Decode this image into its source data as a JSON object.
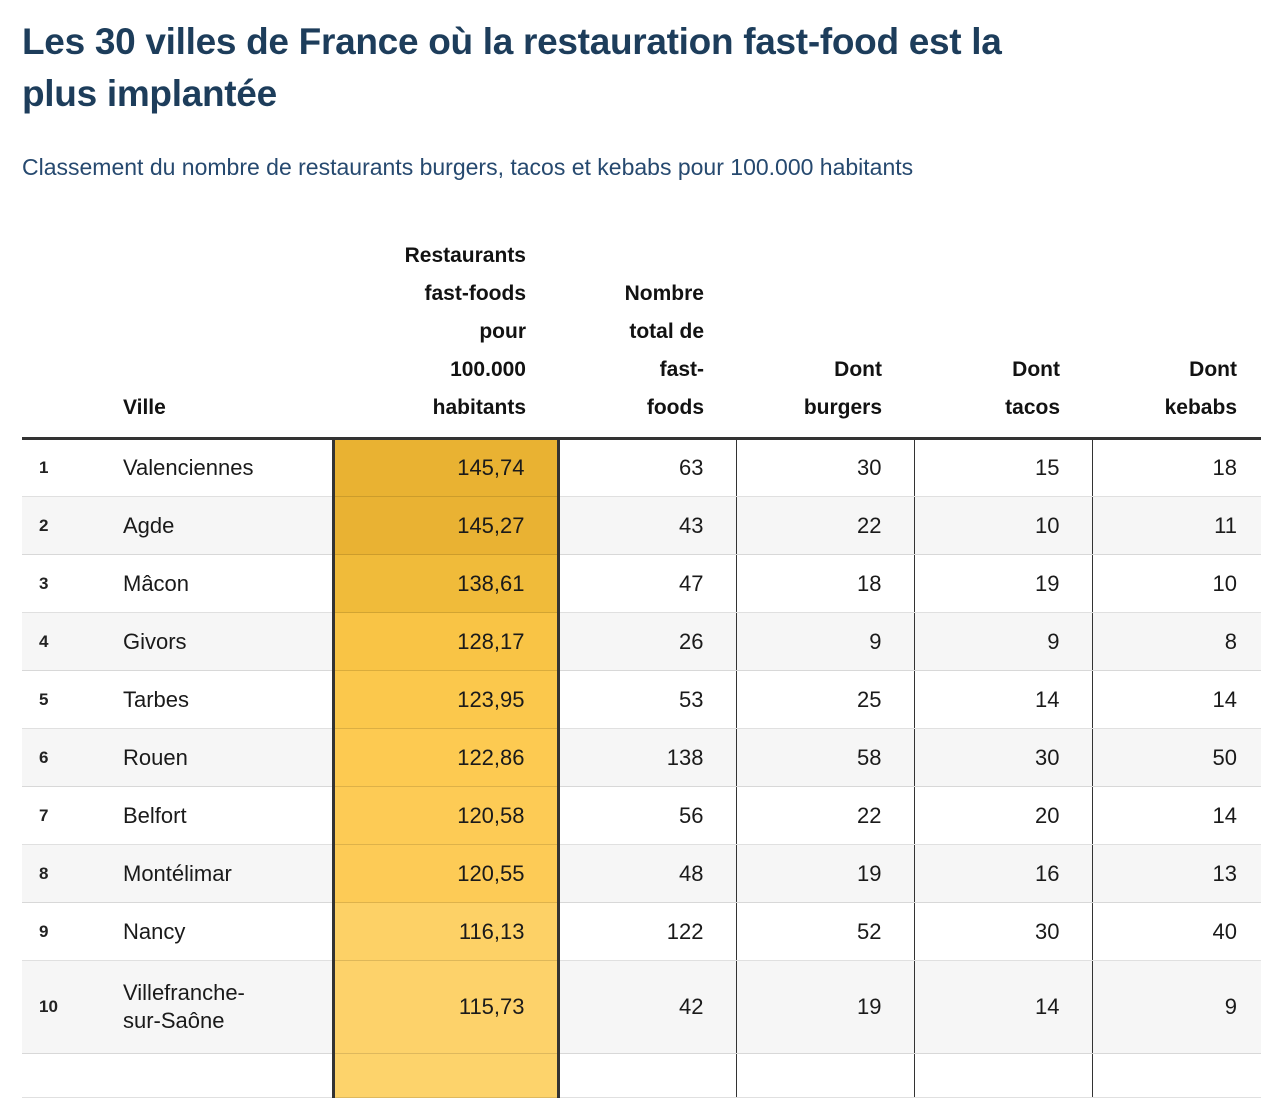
{
  "header": {
    "title_lines": [
      "Les 30 villes de France où la restauration fast-food est la",
      "plus implantée"
    ],
    "subtitle": "Classement du nombre de restaurants burgers, tacos et kebabs pour 100.000 habitants"
  },
  "colors": {
    "title": "#1d3d5b",
    "subtitle": "#26496f",
    "border_dark": "#333333",
    "zebra_row": "#f6f6f6",
    "heat_scale_dark": "#e9b232",
    "heat_scale_light": "#fdd36b"
  },
  "table": {
    "columns": {
      "rank": "",
      "ville": "Ville",
      "rate_lines": [
        "Restaurants",
        "fast-foods",
        "pour",
        "100.000",
        "habitants"
      ],
      "total_lines": [
        "Nombre",
        "total de",
        "fast-",
        "foods"
      ],
      "burgers_lines": [
        "Dont",
        "burgers"
      ],
      "tacos_lines": [
        "Dont",
        "tacos"
      ],
      "kebabs_lines": [
        "Dont",
        "kebabs"
      ]
    },
    "rows": [
      {
        "rank": "1",
        "ville": "Valenciennes",
        "rate": "145,74",
        "total": "63",
        "burgers": "30",
        "tacos": "15",
        "kebabs": "18",
        "rate_color": "#e9b232"
      },
      {
        "rank": "2",
        "ville": "Agde",
        "rate": "145,27",
        "total": "43",
        "burgers": "22",
        "tacos": "10",
        "kebabs": "11",
        "rate_color": "#e9b233"
      },
      {
        "rank": "3",
        "ville": "Mâcon",
        "rate": "138,61",
        "total": "47",
        "burgers": "18",
        "tacos": "19",
        "kebabs": "10",
        "rate_color": "#f0bb3a"
      },
      {
        "rank": "4",
        "ville": "Givors",
        "rate": "128,17",
        "total": "26",
        "burgers": "9",
        "tacos": "9",
        "kebabs": "8",
        "rate_color": "#f9c445"
      },
      {
        "rank": "5",
        "ville": "Tarbes",
        "rate": "123,95",
        "total": "53",
        "burgers": "25",
        "tacos": "14",
        "kebabs": "14",
        "rate_color": "#fbc84c"
      },
      {
        "rank": "6",
        "ville": "Rouen",
        "rate": "122,86",
        "total": "138",
        "burgers": "58",
        "tacos": "30",
        "kebabs": "50",
        "rate_color": "#fdca51"
      },
      {
        "rank": "7",
        "ville": "Belfort",
        "rate": "120,58",
        "total": "56",
        "burgers": "22",
        "tacos": "20",
        "kebabs": "14",
        "rate_color": "#fdcb55"
      },
      {
        "rank": "8",
        "ville": "Montélimar",
        "rate": "120,55",
        "total": "48",
        "burgers": "19",
        "tacos": "16",
        "kebabs": "13",
        "rate_color": "#fdcb56"
      },
      {
        "rank": "9",
        "ville": "Nancy",
        "rate": "116,13",
        "total": "122",
        "burgers": "52",
        "tacos": "30",
        "kebabs": "40",
        "rate_color": "#fdd166"
      },
      {
        "rank": "10",
        "ville": [
          "Villefranche-",
          "sur-Saône"
        ],
        "rate": "115,73",
        "total": "42",
        "burgers": "19",
        "tacos": "14",
        "kebabs": "9",
        "rate_color": "#fdd26a"
      },
      {
        "rank": "",
        "ville": "",
        "rate": "",
        "total": "",
        "burgers": "",
        "tacos": "",
        "kebabs": "",
        "rate_color": "#fdd36b"
      }
    ]
  },
  "chart_data": {
    "type": "table",
    "title": "Les 30 villes de France où la restauration fast-food est la plus implantée",
    "subtitle": "Classement du nombre de restaurants burgers, tacos et kebabs pour 100.000 habitants",
    "columns": [
      "Ville",
      "Restaurants fast-foods pour 100.000 habitants",
      "Nombre total de fast-foods",
      "Dont burgers",
      "Dont tacos",
      "Dont kebabs"
    ],
    "rows": [
      [
        "Valenciennes",
        145.74,
        63,
        30,
        15,
        18
      ],
      [
        "Agde",
        145.27,
        43,
        22,
        10,
        11
      ],
      [
        "Mâcon",
        138.61,
        47,
        18,
        19,
        10
      ],
      [
        "Givors",
        128.17,
        26,
        9,
        9,
        8
      ],
      [
        "Tarbes",
        123.95,
        53,
        25,
        14,
        14
      ],
      [
        "Rouen",
        122.86,
        138,
        58,
        30,
        50
      ],
      [
        "Belfort",
        120.58,
        56,
        22,
        20,
        14
      ],
      [
        "Montélimar",
        120.55,
        48,
        19,
        16,
        13
      ],
      [
        "Nancy",
        116.13,
        122,
        52,
        30,
        40
      ],
      [
        "Villefranche-sur-Saône",
        115.73,
        42,
        19,
        14,
        9
      ]
    ],
    "heatmap_column": "Restaurants fast-foods pour 100.000 habitants",
    "heatmap_value_range": [
      115.73,
      145.74
    ],
    "visible_rows": 10,
    "layout_hints": "heat column has dark side borders; zebra striping; thick rule under header; 11th row cut off at bottom"
  }
}
